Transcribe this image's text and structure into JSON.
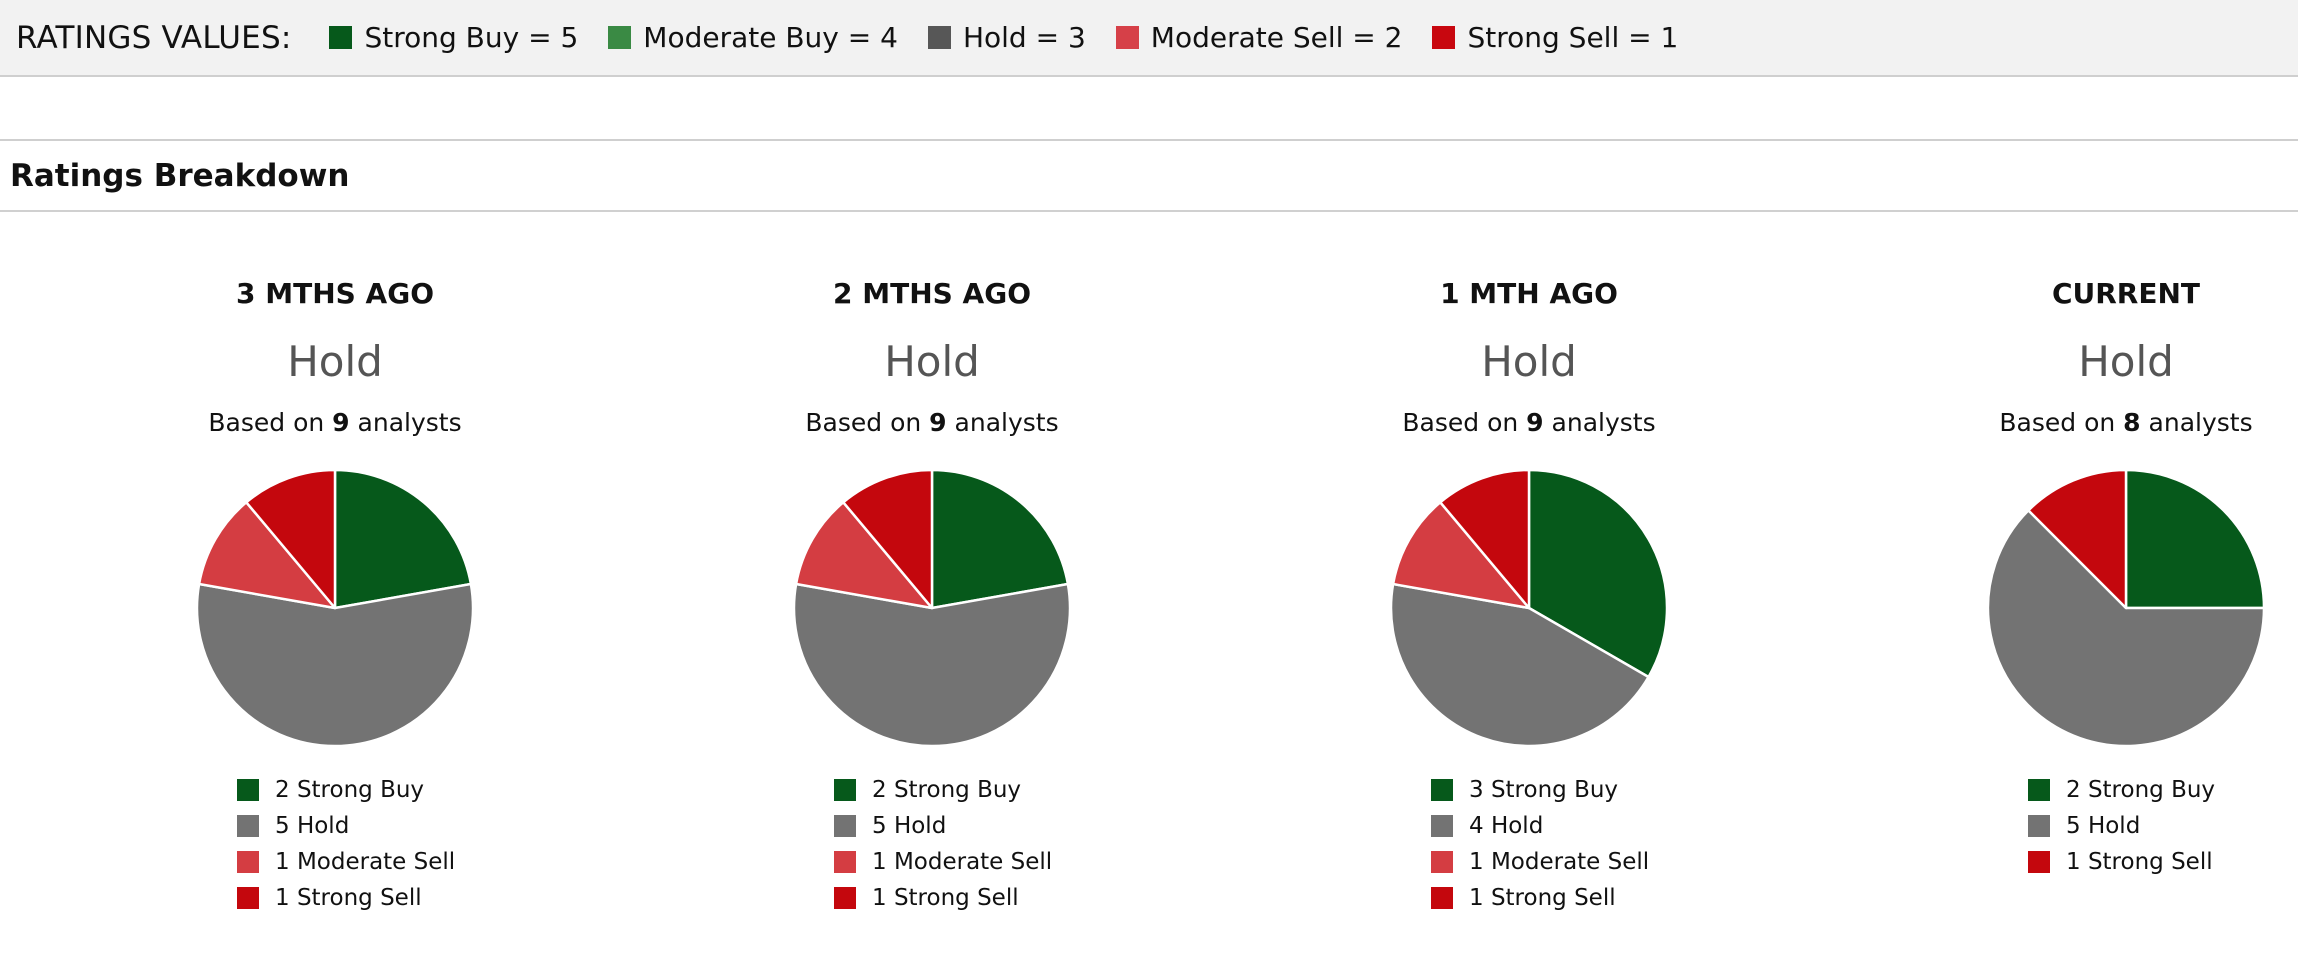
{
  "ratings_values": {
    "title": "RATINGS VALUES:",
    "items": [
      {
        "label": "Strong Buy = 5",
        "color": "#06591b"
      },
      {
        "label": "Moderate Buy = 4",
        "color": "#3a8a44"
      },
      {
        "label": "Hold = 3",
        "color": "#575757"
      },
      {
        "label": "Moderate Sell = 2",
        "color": "#d64048"
      },
      {
        "label": "Strong Sell = 1",
        "color": "#c8070f"
      }
    ]
  },
  "breakdown": {
    "title": "Ratings Breakdown"
  },
  "colors": {
    "strong_buy": "#06591b",
    "hold": "#737373",
    "moderate_sell": "#d43d42",
    "strong_sell": "#c4070d"
  },
  "chart_data": [
    {
      "type": "pie",
      "title": "3 MTHS AGO",
      "rating": "Hold",
      "based_prefix": "Based on ",
      "analyst_count": "9",
      "based_suffix": " analysts",
      "slices": [
        {
          "name": "Strong Buy",
          "value": 2,
          "legend": "2 Strong Buy",
          "color": "#06591b"
        },
        {
          "name": "Hold",
          "value": 5,
          "legend": "5 Hold",
          "color": "#737373"
        },
        {
          "name": "Moderate Sell",
          "value": 1,
          "legend": "1 Moderate Sell",
          "color": "#d43d42"
        },
        {
          "name": "Strong Sell",
          "value": 1,
          "legend": "1 Strong Sell",
          "color": "#c4070d"
        }
      ]
    },
    {
      "type": "pie",
      "title": "2 MTHS AGO",
      "rating": "Hold",
      "based_prefix": "Based on ",
      "analyst_count": "9",
      "based_suffix": " analysts",
      "slices": [
        {
          "name": "Strong Buy",
          "value": 2,
          "legend": "2 Strong Buy",
          "color": "#06591b"
        },
        {
          "name": "Hold",
          "value": 5,
          "legend": "5 Hold",
          "color": "#737373"
        },
        {
          "name": "Moderate Sell",
          "value": 1,
          "legend": "1 Moderate Sell",
          "color": "#d43d42"
        },
        {
          "name": "Strong Sell",
          "value": 1,
          "legend": "1 Strong Sell",
          "color": "#c4070d"
        }
      ]
    },
    {
      "type": "pie",
      "title": "1 MTH AGO",
      "rating": "Hold",
      "based_prefix": "Based on ",
      "analyst_count": "9",
      "based_suffix": " analysts",
      "slices": [
        {
          "name": "Strong Buy",
          "value": 3,
          "legend": "3 Strong Buy",
          "color": "#06591b"
        },
        {
          "name": "Hold",
          "value": 4,
          "legend": "4 Hold",
          "color": "#737373"
        },
        {
          "name": "Moderate Sell",
          "value": 1,
          "legend": "1 Moderate Sell",
          "color": "#d43d42"
        },
        {
          "name": "Strong Sell",
          "value": 1,
          "legend": "1 Strong Sell",
          "color": "#c4070d"
        }
      ]
    },
    {
      "type": "pie",
      "title": "CURRENT",
      "rating": "Hold",
      "based_prefix": "Based on ",
      "analyst_count": "8",
      "based_suffix": " analysts",
      "slices": [
        {
          "name": "Strong Buy",
          "value": 2,
          "legend": "2 Strong Buy",
          "color": "#06591b"
        },
        {
          "name": "Hold",
          "value": 5,
          "legend": "5 Hold",
          "color": "#737373"
        },
        {
          "name": "Strong Sell",
          "value": 1,
          "legend": "1 Strong Sell",
          "color": "#c4070d"
        }
      ]
    }
  ]
}
